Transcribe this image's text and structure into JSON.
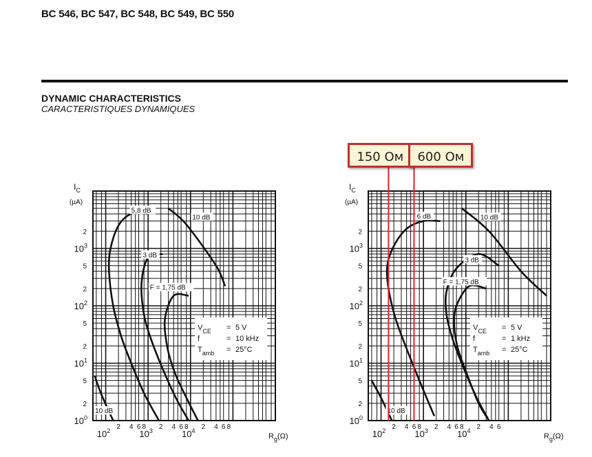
{
  "header": {
    "title": "BC 546, BC 547, BC 548, BC 549, BC 550"
  },
  "section": {
    "title": "DYNAMIC CHARACTERISTICS",
    "subtitle": "CARACTERISTIQUES DYNAMIQUES"
  },
  "markers": [
    {
      "label": "150 Ом",
      "rg": 150
    },
    {
      "label": "600 Ом",
      "rg": 600
    }
  ],
  "colors": {
    "ink": "#111111",
    "marker": "#d8262b",
    "tag_fill": "#fdf4d6"
  },
  "chart_data": [
    {
      "type": "line",
      "xscale": "log",
      "yscale": "log",
      "xlim": [
        50,
        1000000
      ],
      "ylim": [
        1,
        10000
      ],
      "xlabel": "R",
      "xlabel_sub": "g",
      "xlabel_unit": "(Ω)",
      "ylabel": "I",
      "ylabel_sub": "C",
      "ylabel_unit": "(µA)",
      "x_major_ticks": [
        {
          "v": 100,
          "m": "10",
          "e": "2"
        },
        {
          "v": 1000,
          "m": "10",
          "e": "3"
        },
        {
          "v": 10000,
          "m": "10",
          "e": "4"
        }
      ],
      "x_minor_labels": [
        {
          "v": 200,
          "t": "2"
        },
        {
          "v": 400,
          "t": "4"
        },
        {
          "v": 600,
          "t": "6"
        },
        {
          "v": 800,
          "t": "8"
        },
        {
          "v": 2000,
          "t": "2"
        },
        {
          "v": 4000,
          "t": "4"
        },
        {
          "v": 6000,
          "t": "6"
        },
        {
          "v": 8000,
          "t": "8"
        },
        {
          "v": 20000,
          "t": "2"
        },
        {
          "v": 40000,
          "t": "4"
        },
        {
          "v": 60000,
          "t": "6"
        },
        {
          "v": 80000,
          "t": "8"
        }
      ],
      "y_major_ticks": [
        {
          "v": 1,
          "m": "10",
          "e": "0"
        },
        {
          "v": 10,
          "m": "10",
          "e": "1"
        },
        {
          "v": 100,
          "m": "10",
          "e": "2"
        },
        {
          "v": 1000,
          "m": "10",
          "e": "3"
        }
      ],
      "y_minor_labels": [
        {
          "v": 2,
          "t": "2"
        },
        {
          "v": 5,
          "t": "5"
        },
        {
          "v": 20,
          "t": "2"
        },
        {
          "v": 50,
          "t": "5"
        },
        {
          "v": 200,
          "t": "2"
        },
        {
          "v": 500,
          "t": "5"
        },
        {
          "v": 2000,
          "t": "2"
        }
      ],
      "conditions": [
        {
          "k": "V",
          "sub": "CE",
          "v": "5 V"
        },
        {
          "k": "f",
          "sub": "",
          "v": "10 kHz"
        },
        {
          "k": "T",
          "sub": "amb",
          "v": "25°C"
        }
      ],
      "series": [
        {
          "name": "5,8 dB",
          "points": [
            [
              1000,
              4000
            ],
            [
              400,
              4000
            ],
            [
              200,
              2500
            ],
            [
              130,
              1000
            ],
            [
              120,
              400
            ],
            [
              150,
              100
            ],
            [
              230,
              30
            ],
            [
              400,
              10
            ],
            [
              800,
              3
            ],
            [
              1800,
              1
            ]
          ]
        },
        {
          "name": "3 dB",
          "points": [
            [
              2200,
              800
            ],
            [
              1000,
              700
            ],
            [
              700,
              250
            ],
            [
              800,
              70
            ],
            [
              1200,
              25
            ],
            [
              2200,
              8
            ],
            [
              4500,
              2.5
            ],
            [
              9000,
              1
            ]
          ]
        },
        {
          "name": "F = 1,75 dB",
          "points": [
            [
              9000,
              150
            ],
            [
              4000,
              150
            ],
            [
              2500,
              60
            ],
            [
              2800,
              20
            ],
            [
              4200,
              7
            ],
            [
              8000,
              2.5
            ],
            [
              15000,
              1
            ]
          ]
        },
        {
          "name": "10 dB",
          "points": [
            [
              3000,
              5000
            ],
            [
              8000,
              2600
            ],
            [
              40000,
              500
            ],
            [
              65000,
              220
            ]
          ]
        },
        {
          "name": "10 dB",
          "points": [
            [
              55,
              6
            ],
            [
              80,
              2.8
            ],
            [
              150,
              1
            ]
          ]
        }
      ],
      "annotations": [
        {
          "text": "5,8 dB",
          "x": 400,
          "y": 4200
        },
        {
          "text": "10 dB",
          "x": 11000,
          "y": 3200
        },
        {
          "text": "3 dB",
          "x": 750,
          "y": 700
        },
        {
          "text": "F = 1,75 dB",
          "x": 1100,
          "y": 190
        },
        {
          "text": "10 dB",
          "x": 56,
          "y": 1.35
        }
      ]
    },
    {
      "type": "line",
      "xscale": "log",
      "yscale": "log",
      "xlim": [
        50,
        1000000
      ],
      "ylim": [
        1,
        10000
      ],
      "xlabel": "R",
      "xlabel_sub": "g",
      "xlabel_unit": "(Ω)",
      "ylabel": "I",
      "ylabel_sub": "C",
      "ylabel_unit": "(µA)",
      "x_major_ticks": [
        {
          "v": 100,
          "m": "10",
          "e": "2"
        },
        {
          "v": 1000,
          "m": "10",
          "e": "3"
        },
        {
          "v": 10000,
          "m": "10",
          "e": "4"
        }
      ],
      "x_minor_labels": [
        {
          "v": 200,
          "t": "2"
        },
        {
          "v": 400,
          "t": "4"
        },
        {
          "v": 600,
          "t": "6"
        },
        {
          "v": 800,
          "t": "8"
        },
        {
          "v": 2000,
          "t": "2"
        },
        {
          "v": 4000,
          "t": "4"
        },
        {
          "v": 6000,
          "t": "6"
        },
        {
          "v": 8000,
          "t": "8"
        },
        {
          "v": 20000,
          "t": "2"
        },
        {
          "v": 40000,
          "t": "4"
        },
        {
          "v": 60000,
          "t": "6"
        }
      ],
      "y_major_ticks": [
        {
          "v": 1,
          "m": "10",
          "e": "0"
        },
        {
          "v": 10,
          "m": "10",
          "e": "1"
        },
        {
          "v": 100,
          "m": "10",
          "e": "2"
        },
        {
          "v": 1000,
          "m": "10",
          "e": "3"
        }
      ],
      "y_minor_labels": [
        {
          "v": 2,
          "t": "2"
        },
        {
          "v": 5,
          "t": "5"
        },
        {
          "v": 20,
          "t": "2"
        },
        {
          "v": 50,
          "t": "5"
        },
        {
          "v": 200,
          "t": "2"
        },
        {
          "v": 500,
          "t": "5"
        },
        {
          "v": 2000,
          "t": "2"
        }
      ],
      "conditions": [
        {
          "k": "V",
          "sub": "CE",
          "v": "5 V"
        },
        {
          "k": "f",
          "sub": "",
          "v": "1 kHz"
        },
        {
          "k": "T",
          "sub": "amb",
          "v": "25°C"
        }
      ],
      "series": [
        {
          "name": "6 dB",
          "points": [
            [
              2500,
              3000
            ],
            [
              1000,
              3000
            ],
            [
              400,
              2200
            ],
            [
              200,
              1100
            ],
            [
              140,
              500
            ],
            [
              150,
              200
            ],
            [
              220,
              60
            ],
            [
              400,
              18
            ],
            [
              800,
              5
            ],
            [
              1800,
              1.2
            ]
          ]
        },
        {
          "name": "3 dB",
          "points": [
            [
              60000,
              500
            ],
            [
              20000,
              800
            ],
            [
              6000,
              450
            ],
            [
              3500,
              180
            ],
            [
              3500,
              70
            ],
            [
              5000,
              25
            ],
            [
              9000,
              8
            ],
            [
              18000,
              2.5
            ],
            [
              35000,
              1
            ]
          ]
        },
        {
          "name": "F = 1,75 dB",
          "points": [
            [
              30000,
              200
            ],
            [
              12000,
              220
            ],
            [
              6000,
              100
            ],
            [
              5300,
              45
            ],
            [
              6500,
              18
            ],
            [
              11000,
              6
            ],
            [
              20000,
              2
            ],
            [
              35000,
              1
            ]
          ]
        },
        {
          "name": "10 dB",
          "points": [
            [
              8000,
              5000
            ],
            [
              35000,
              2000
            ],
            [
              200000,
              400
            ],
            [
              800000,
              150
            ]
          ]
        },
        {
          "name": "10 dB",
          "points": [
            [
              60,
              5
            ],
            [
              100,
              2.5
            ],
            [
              180,
              1
            ]
          ]
        }
      ],
      "annotations": [
        {
          "text": "6 dB",
          "x": 700,
          "y": 3300
        },
        {
          "text": "10 dB",
          "x": 22000,
          "y": 3200
        },
        {
          "text": "3 dB",
          "x": 9500,
          "y": 580
        },
        {
          "text": "F = 1,75 dB",
          "x": 2900,
          "y": 240
        },
        {
          "text": "10 dB",
          "x": 140,
          "y": 1.35
        }
      ]
    }
  ]
}
